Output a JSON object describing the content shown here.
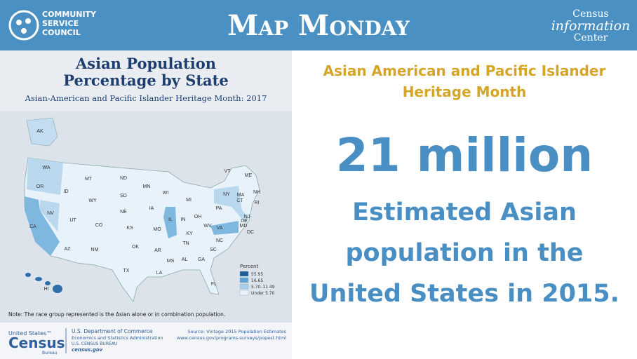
{
  "header": {
    "org": [
      "COMMUNITY",
      "SERVICE",
      "COUNCIL"
    ],
    "title": "Map Monday",
    "partner": [
      "Census",
      "information",
      "Center"
    ]
  },
  "map": {
    "title": [
      "Asian Population",
      "Percentage by State"
    ],
    "subtitle": "Asian-American and Pacific Islander Heritage Month: 2017",
    "states": [
      "AK",
      "WA",
      "OR",
      "CA",
      "NV",
      "ID",
      "MT",
      "WY",
      "UT",
      "CO",
      "AZ",
      "NM",
      "ND",
      "SD",
      "NE",
      "KS",
      "OK",
      "TX",
      "MN",
      "IA",
      "MO",
      "AR",
      "LA",
      "WI",
      "IL",
      "MS",
      "MI",
      "IN",
      "KY",
      "TN",
      "AL",
      "GA",
      "FL",
      "OH",
      "WV",
      "VA",
      "NC",
      "SC",
      "PA",
      "NY",
      "VT",
      "ME",
      "NH",
      "MA",
      "CT",
      "RI",
      "NJ",
      "DE",
      "MD",
      "DC",
      "HI"
    ],
    "legend": {
      "title": "Percent",
      "classes": [
        "55.95",
        "16.65",
        "5.70–11.49",
        "Under 5.70"
      ]
    },
    "note": "Note: The race group represented is the Asian alone or in combination population.",
    "footer": {
      "logo": [
        "United States™",
        "Census",
        "Bureau"
      ],
      "agency": [
        "U.S. Department of Commerce",
        "Economics and Statistics Administration",
        "U.S. CENSUS BUREAU",
        "census.gov"
      ],
      "source": [
        "Source: Vintage 2015 Population Estimates",
        "www.census.gov/programs-surveys/popest.html"
      ]
    }
  },
  "panel": {
    "heading": [
      "Asian American and Pacific Islander",
      "Heritage Month"
    ],
    "stat": "21 million",
    "caption": [
      "Estimated Asian",
      "population in the",
      "United States in 2015."
    ]
  }
}
